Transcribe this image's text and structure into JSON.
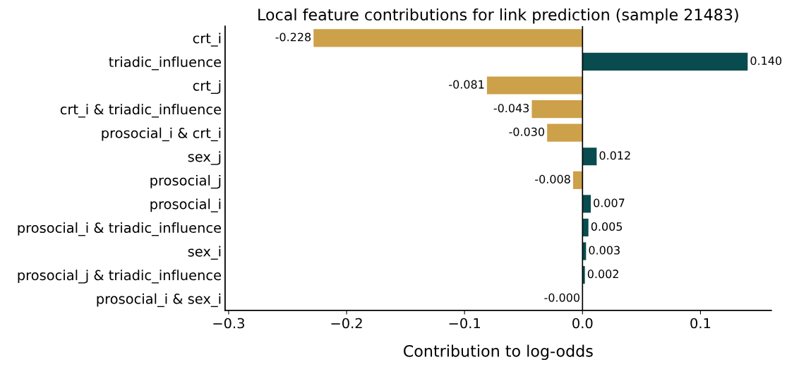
{
  "chart_data": {
    "type": "bar",
    "orientation": "horizontal",
    "title": "Local feature contributions for link prediction (sample 21483)",
    "xlabel": "Contribution to log-odds",
    "categories": [
      "crt_i",
      "triadic_influence",
      "crt_j",
      "crt_i & triadic_influence",
      "prosocial_i & crt_i",
      "sex_j",
      "prosocial_j",
      "prosocial_i",
      "prosocial_i & triadic_influence",
      "sex_i",
      "prosocial_j & triadic_influence",
      "prosocial_i & sex_i"
    ],
    "values": [
      -0.228,
      0.14,
      -0.081,
      -0.043,
      -0.03,
      0.012,
      -0.008,
      0.007,
      0.005,
      0.003,
      0.002,
      -0.0001
    ],
    "value_labels": [
      "-0.228",
      "0.140",
      "-0.081",
      "-0.043",
      "-0.030",
      "0.012",
      "-0.008",
      "0.007",
      "0.005",
      "0.003",
      "0.002",
      "-0.000"
    ],
    "colors": [
      "#cda04a",
      "#084c4f",
      "#cda04a",
      "#cda04a",
      "#cda04a",
      "#084c4f",
      "#cda04a",
      "#084c4f",
      "#084c4f",
      "#084c4f",
      "#084c4f",
      "#cda04a"
    ],
    "xlim": [
      -0.303,
      0.16
    ],
    "xticks": [
      {
        "value": -0.3,
        "label": "−0.3"
      },
      {
        "value": -0.2,
        "label": "−0.2"
      },
      {
        "value": -0.1,
        "label": "−0.1"
      },
      {
        "value": 0.0,
        "label": "0.0"
      },
      {
        "value": 0.1,
        "label": "0.1"
      }
    ],
    "ref_lines": [
      {
        "axis": "x",
        "value": 0,
        "color": "#000000",
        "line_style": "solid"
      }
    ],
    "grid": false
  }
}
